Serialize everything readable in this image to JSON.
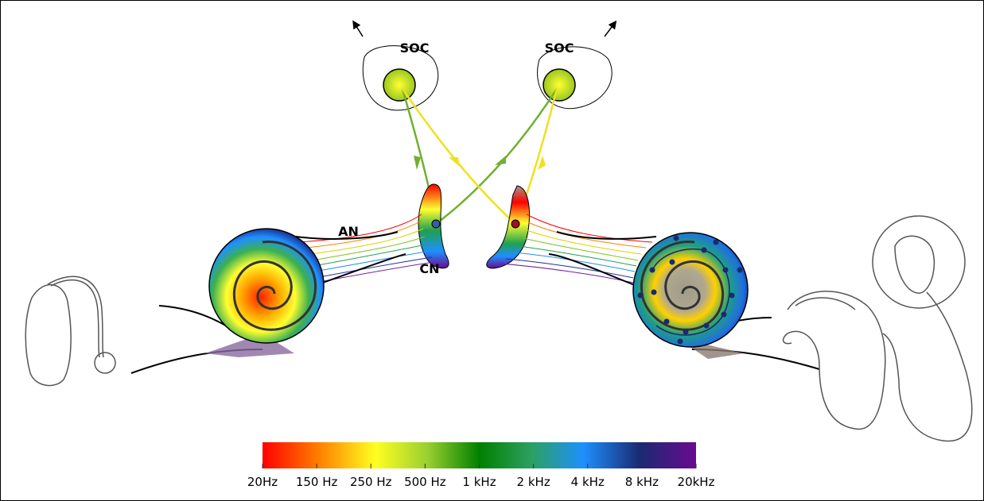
{
  "labels": {
    "soc_left": "SOC",
    "soc_right": "SOC",
    "an": "AN",
    "cn": "CN"
  },
  "colorbar": {
    "ticks": [
      "20Hz",
      "150 Hz",
      "250 Hz",
      "500 Hz",
      "1 kHz",
      "2 kHz",
      "4 kHz",
      "8 kHz",
      "20kHz"
    ]
  }
}
